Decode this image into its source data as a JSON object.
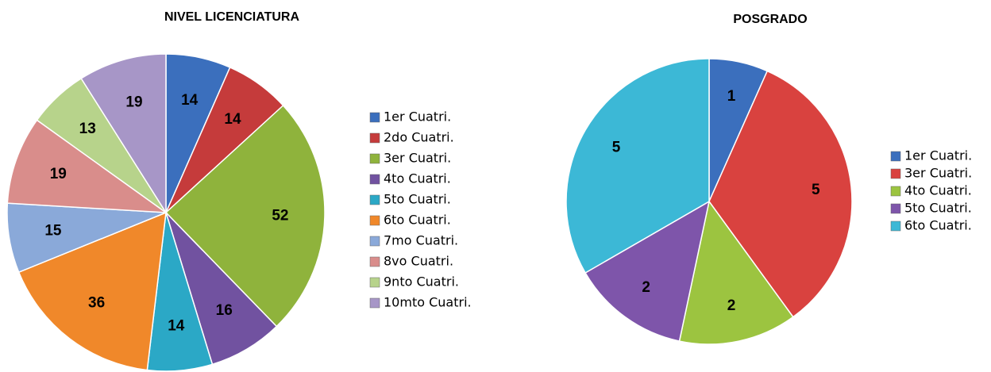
{
  "chart_data": [
    {
      "type": "pie",
      "title": "NIVEL LICENCIATURA",
      "categories": [
        "1er Cuatri.",
        "2do Cuatri.",
        "3er Cuatri.",
        "4to Cuatri.",
        "5to Cuatri.",
        "6to Cuatri.",
        "7mo Cuatri.",
        "8vo Cuatri.",
        "9nto Cuatri.",
        "10mto Cuatri."
      ],
      "values": [
        14,
        14,
        52,
        16,
        14,
        36,
        15,
        19,
        13,
        19
      ],
      "colors": [
        "#3b6fbd",
        "#c53b3b",
        "#8fb33c",
        "#7152a0",
        "#2ba8c6",
        "#f0882a",
        "#8aa9d9",
        "#d98d8b",
        "#b7d38b",
        "#a796c7"
      ],
      "legend": "right"
    },
    {
      "type": "pie",
      "title": "POSGRADO",
      "categories": [
        "1er Cuatri.",
        "3er Cuatri.",
        "4to Cuatri.",
        "5to Cuatri.",
        "6to Cuatri."
      ],
      "values": [
        1,
        5,
        2,
        2,
        5
      ],
      "colors": [
        "#3b6fbd",
        "#d9423f",
        "#9cc440",
        "#7e55aa",
        "#3cb8d6"
      ],
      "legend": "right"
    }
  ]
}
